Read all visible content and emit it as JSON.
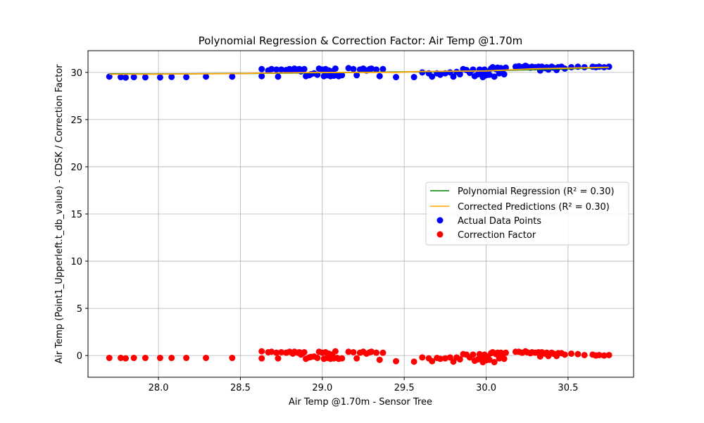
{
  "chart_data": {
    "type": "scatter",
    "title": "Polynomial Regression & Correction Factor: Air Temp @1.70m",
    "xlabel": "Air Temp @1.70m - Sensor Tree",
    "ylabel": "Air Temp (Point1_Upperleft.t_db_value) - CDSK / Correction Factor",
    "xlim": [
      27.57,
      30.9
    ],
    "ylim": [
      -2.3,
      32.3
    ],
    "xticks": [
      28.0,
      28.5,
      29.0,
      29.5,
      30.0,
      30.5
    ],
    "yticks": [
      0,
      5,
      10,
      15,
      20,
      25,
      30
    ],
    "xtick_labels": [
      "28.0",
      "28.5",
      "29.0",
      "29.5",
      "30.0",
      "30.5"
    ],
    "ytick_labels": [
      "0",
      "5",
      "10",
      "15",
      "20",
      "25",
      "30"
    ],
    "grid": true,
    "legend_position": "center-right",
    "legend": [
      {
        "label": "Polynomial Regression (R² = 0.30)",
        "kind": "line",
        "color": "#008000"
      },
      {
        "label": "Corrected Predictions (R² = 0.30)",
        "kind": "line",
        "color": "#ffa500"
      },
      {
        "label": "Actual Data Points",
        "kind": "marker",
        "color": "#0000ff"
      },
      {
        "label": "Correction Factor",
        "kind": "marker",
        "color": "#ff0000"
      }
    ],
    "series": [
      {
        "name": "Actual Data Points",
        "kind": "scatter",
        "color": "#0000ff",
        "points": [
          [
            27.7,
            29.55
          ],
          [
            27.77,
            29.5
          ],
          [
            27.8,
            29.45
          ],
          [
            27.85,
            29.5
          ],
          [
            27.92,
            29.48
          ],
          [
            28.01,
            29.47
          ],
          [
            28.08,
            29.52
          ],
          [
            28.17,
            29.5
          ],
          [
            28.29,
            29.55
          ],
          [
            28.45,
            29.55
          ],
          [
            28.63,
            30.35
          ],
          [
            28.63,
            29.6
          ],
          [
            28.67,
            30.2
          ],
          [
            28.69,
            30.35
          ],
          [
            28.72,
            30.3
          ],
          [
            28.73,
            29.55
          ],
          [
            28.75,
            30.3
          ],
          [
            28.78,
            30.25
          ],
          [
            28.8,
            30.35
          ],
          [
            28.82,
            30.2
          ],
          [
            28.83,
            30.4
          ],
          [
            28.85,
            30.3
          ],
          [
            28.86,
            30.35
          ],
          [
            28.87,
            30.1
          ],
          [
            28.88,
            30.25
          ],
          [
            28.89,
            30.35
          ],
          [
            28.9,
            29.6
          ],
          [
            28.92,
            29.7
          ],
          [
            28.93,
            29.8
          ],
          [
            28.95,
            29.9
          ],
          [
            28.97,
            29.75
          ],
          [
            28.98,
            30.4
          ],
          [
            29.0,
            30.3
          ],
          [
            29.01,
            29.6
          ],
          [
            29.02,
            30.35
          ],
          [
            29.03,
            29.7
          ],
          [
            29.04,
            30.2
          ],
          [
            29.05,
            29.6
          ],
          [
            29.06,
            30.1
          ],
          [
            29.07,
            29.65
          ],
          [
            29.08,
            30.4
          ],
          [
            29.09,
            29.7
          ],
          [
            29.1,
            29.6
          ],
          [
            29.12,
            29.7
          ],
          [
            29.16,
            30.45
          ],
          [
            29.19,
            30.35
          ],
          [
            29.21,
            29.7
          ],
          [
            29.23,
            30.3
          ],
          [
            29.25,
            30.4
          ],
          [
            29.27,
            30.2
          ],
          [
            29.29,
            30.35
          ],
          [
            29.3,
            30.4
          ],
          [
            29.33,
            30.3
          ],
          [
            29.35,
            29.6
          ],
          [
            29.37,
            30.35
          ],
          [
            29.45,
            29.5
          ],
          [
            29.56,
            29.5
          ],
          [
            29.61,
            30.0
          ],
          [
            29.65,
            29.9
          ],
          [
            29.67,
            29.55
          ],
          [
            29.7,
            29.9
          ],
          [
            29.72,
            29.75
          ],
          [
            29.75,
            29.9
          ],
          [
            29.78,
            30.0
          ],
          [
            29.8,
            29.55
          ],
          [
            29.82,
            30.05
          ],
          [
            29.84,
            29.8
          ],
          [
            29.86,
            30.35
          ],
          [
            29.88,
            30.25
          ],
          [
            29.9,
            29.95
          ],
          [
            29.92,
            30.3
          ],
          [
            29.93,
            29.6
          ],
          [
            29.95,
            29.8
          ],
          [
            29.96,
            30.3
          ],
          [
            29.97,
            29.95
          ],
          [
            29.98,
            29.5
          ],
          [
            29.99,
            30.3
          ],
          [
            30.0,
            29.7
          ],
          [
            30.01,
            30.1
          ],
          [
            30.02,
            29.75
          ],
          [
            30.03,
            30.4
          ],
          [
            30.04,
            30.55
          ],
          [
            30.05,
            29.55
          ],
          [
            30.06,
            30.35
          ],
          [
            30.07,
            30.5
          ],
          [
            30.08,
            29.9
          ],
          [
            30.09,
            30.45
          ],
          [
            30.1,
            30.3
          ],
          [
            30.11,
            29.8
          ],
          [
            30.12,
            30.5
          ],
          [
            30.18,
            30.6
          ],
          [
            30.2,
            30.65
          ],
          [
            30.22,
            30.55
          ],
          [
            30.24,
            30.7
          ],
          [
            30.25,
            30.6
          ],
          [
            30.27,
            30.5
          ],
          [
            30.28,
            30.6
          ],
          [
            30.3,
            30.55
          ],
          [
            30.32,
            30.6
          ],
          [
            30.33,
            30.2
          ],
          [
            30.34,
            30.6
          ],
          [
            30.36,
            30.45
          ],
          [
            30.37,
            30.55
          ],
          [
            30.38,
            30.3
          ],
          [
            30.4,
            30.6
          ],
          [
            30.41,
            30.5
          ],
          [
            30.43,
            30.25
          ],
          [
            30.44,
            30.55
          ],
          [
            30.46,
            30.6
          ],
          [
            30.48,
            30.4
          ],
          [
            30.52,
            30.55
          ],
          [
            30.56,
            30.6
          ],
          [
            30.6,
            30.55
          ],
          [
            30.65,
            30.6
          ],
          [
            30.67,
            30.55
          ],
          [
            30.69,
            30.6
          ],
          [
            30.72,
            30.55
          ],
          [
            30.75,
            30.6
          ]
        ]
      },
      {
        "name": "Correction Factor",
        "kind": "scatter",
        "color": "#ff0000",
        "points": [
          [
            27.7,
            -0.25
          ],
          [
            27.77,
            -0.25
          ],
          [
            27.8,
            -0.3
          ],
          [
            27.85,
            -0.25
          ],
          [
            27.92,
            -0.25
          ],
          [
            28.01,
            -0.25
          ],
          [
            28.08,
            -0.25
          ],
          [
            28.17,
            -0.25
          ],
          [
            28.29,
            -0.25
          ],
          [
            28.45,
            -0.25
          ],
          [
            28.63,
            0.45
          ],
          [
            28.63,
            -0.3
          ],
          [
            28.67,
            0.35
          ],
          [
            28.69,
            0.4
          ],
          [
            28.72,
            0.3
          ],
          [
            28.73,
            -0.3
          ],
          [
            28.75,
            0.35
          ],
          [
            28.78,
            0.3
          ],
          [
            28.8,
            0.4
          ],
          [
            28.82,
            0.2
          ],
          [
            28.83,
            0.4
          ],
          [
            28.85,
            0.3
          ],
          [
            28.86,
            0.35
          ],
          [
            28.87,
            0.1
          ],
          [
            28.88,
            0.25
          ],
          [
            28.89,
            0.35
          ],
          [
            28.9,
            -0.35
          ],
          [
            28.92,
            -0.2
          ],
          [
            28.93,
            -0.15
          ],
          [
            28.95,
            -0.1
          ],
          [
            28.97,
            -0.25
          ],
          [
            28.98,
            0.4
          ],
          [
            29.0,
            0.3
          ],
          [
            29.01,
            -0.35
          ],
          [
            29.02,
            0.35
          ],
          [
            29.03,
            -0.25
          ],
          [
            29.04,
            0.2
          ],
          [
            29.05,
            -0.35
          ],
          [
            29.06,
            0.1
          ],
          [
            29.07,
            -0.3
          ],
          [
            29.08,
            0.45
          ],
          [
            29.09,
            -0.25
          ],
          [
            29.1,
            -0.35
          ],
          [
            29.12,
            -0.3
          ],
          [
            29.16,
            0.4
          ],
          [
            29.19,
            0.35
          ],
          [
            29.21,
            -0.3
          ],
          [
            29.23,
            0.3
          ],
          [
            29.25,
            0.4
          ],
          [
            29.27,
            0.2
          ],
          [
            29.29,
            0.35
          ],
          [
            29.3,
            0.4
          ],
          [
            29.33,
            0.3
          ],
          [
            29.35,
            -0.45
          ],
          [
            29.37,
            0.3
          ],
          [
            29.45,
            -0.6
          ],
          [
            29.56,
            -0.65
          ],
          [
            29.61,
            -0.2
          ],
          [
            29.65,
            -0.3
          ],
          [
            29.67,
            -0.6
          ],
          [
            29.7,
            -0.25
          ],
          [
            29.72,
            -0.35
          ],
          [
            29.75,
            -0.3
          ],
          [
            29.78,
            -0.2
          ],
          [
            29.8,
            -0.65
          ],
          [
            29.82,
            -0.2
          ],
          [
            29.84,
            -0.4
          ],
          [
            29.86,
            0.15
          ],
          [
            29.88,
            0.1
          ],
          [
            29.9,
            -0.2
          ],
          [
            29.92,
            0.1
          ],
          [
            29.93,
            -0.55
          ],
          [
            29.95,
            -0.4
          ],
          [
            29.96,
            0.15
          ],
          [
            29.97,
            -0.25
          ],
          [
            29.98,
            -0.7
          ],
          [
            29.99,
            0.1
          ],
          [
            30.0,
            -0.5
          ],
          [
            30.01,
            -0.1
          ],
          [
            30.02,
            -0.45
          ],
          [
            30.03,
            0.25
          ],
          [
            30.04,
            0.35
          ],
          [
            30.05,
            -0.7
          ],
          [
            30.06,
            0.15
          ],
          [
            30.07,
            0.3
          ],
          [
            30.08,
            -0.3
          ],
          [
            30.09,
            0.3
          ],
          [
            30.1,
            0.1
          ],
          [
            30.11,
            -0.35
          ],
          [
            30.12,
            0.3
          ],
          [
            30.18,
            0.4
          ],
          [
            30.2,
            0.4
          ],
          [
            30.22,
            0.3
          ],
          [
            30.24,
            0.45
          ],
          [
            30.25,
            0.35
          ],
          [
            30.27,
            0.25
          ],
          [
            30.28,
            0.35
          ],
          [
            30.3,
            0.3
          ],
          [
            30.32,
            0.35
          ],
          [
            30.33,
            -0.1
          ],
          [
            30.34,
            0.35
          ],
          [
            30.36,
            0.2
          ],
          [
            30.37,
            0.3
          ],
          [
            30.38,
            -0.05
          ],
          [
            30.4,
            0.3
          ],
          [
            30.41,
            0.2
          ],
          [
            30.43,
            -0.05
          ],
          [
            30.44,
            0.25
          ],
          [
            30.46,
            0.25
          ],
          [
            30.48,
            0.1
          ],
          [
            30.52,
            0.2
          ],
          [
            30.56,
            0.15
          ],
          [
            30.6,
            0.05
          ],
          [
            30.65,
            0.1
          ],
          [
            30.67,
            0.0
          ],
          [
            30.69,
            0.05
          ],
          [
            30.72,
            0.0
          ],
          [
            30.75,
            0.05
          ]
        ]
      },
      {
        "name": "Polynomial Regression (R² = 0.30)",
        "kind": "line",
        "color": "#008000",
        "points": [
          [
            27.7,
            29.85
          ],
          [
            28.0,
            29.84
          ],
          [
            28.5,
            29.88
          ],
          [
            29.0,
            29.96
          ],
          [
            29.5,
            30.05
          ],
          [
            30.0,
            30.17
          ],
          [
            30.5,
            30.38
          ],
          [
            30.75,
            30.52
          ]
        ]
      },
      {
        "name": "Corrected Predictions (R² = 0.30)",
        "kind": "line",
        "color": "#ffa500",
        "points": [
          [
            27.7,
            29.8
          ],
          [
            28.0,
            29.82
          ],
          [
            28.5,
            29.88
          ],
          [
            28.63,
            29.92
          ],
          [
            28.9,
            29.98
          ],
          [
            29.2,
            30.0
          ],
          [
            29.45,
            30.0
          ],
          [
            29.6,
            30.1
          ],
          [
            29.8,
            30.12
          ],
          [
            30.0,
            30.15
          ],
          [
            30.12,
            30.25
          ],
          [
            30.3,
            30.38
          ],
          [
            30.5,
            30.45
          ],
          [
            30.75,
            30.55
          ]
        ]
      }
    ]
  }
}
